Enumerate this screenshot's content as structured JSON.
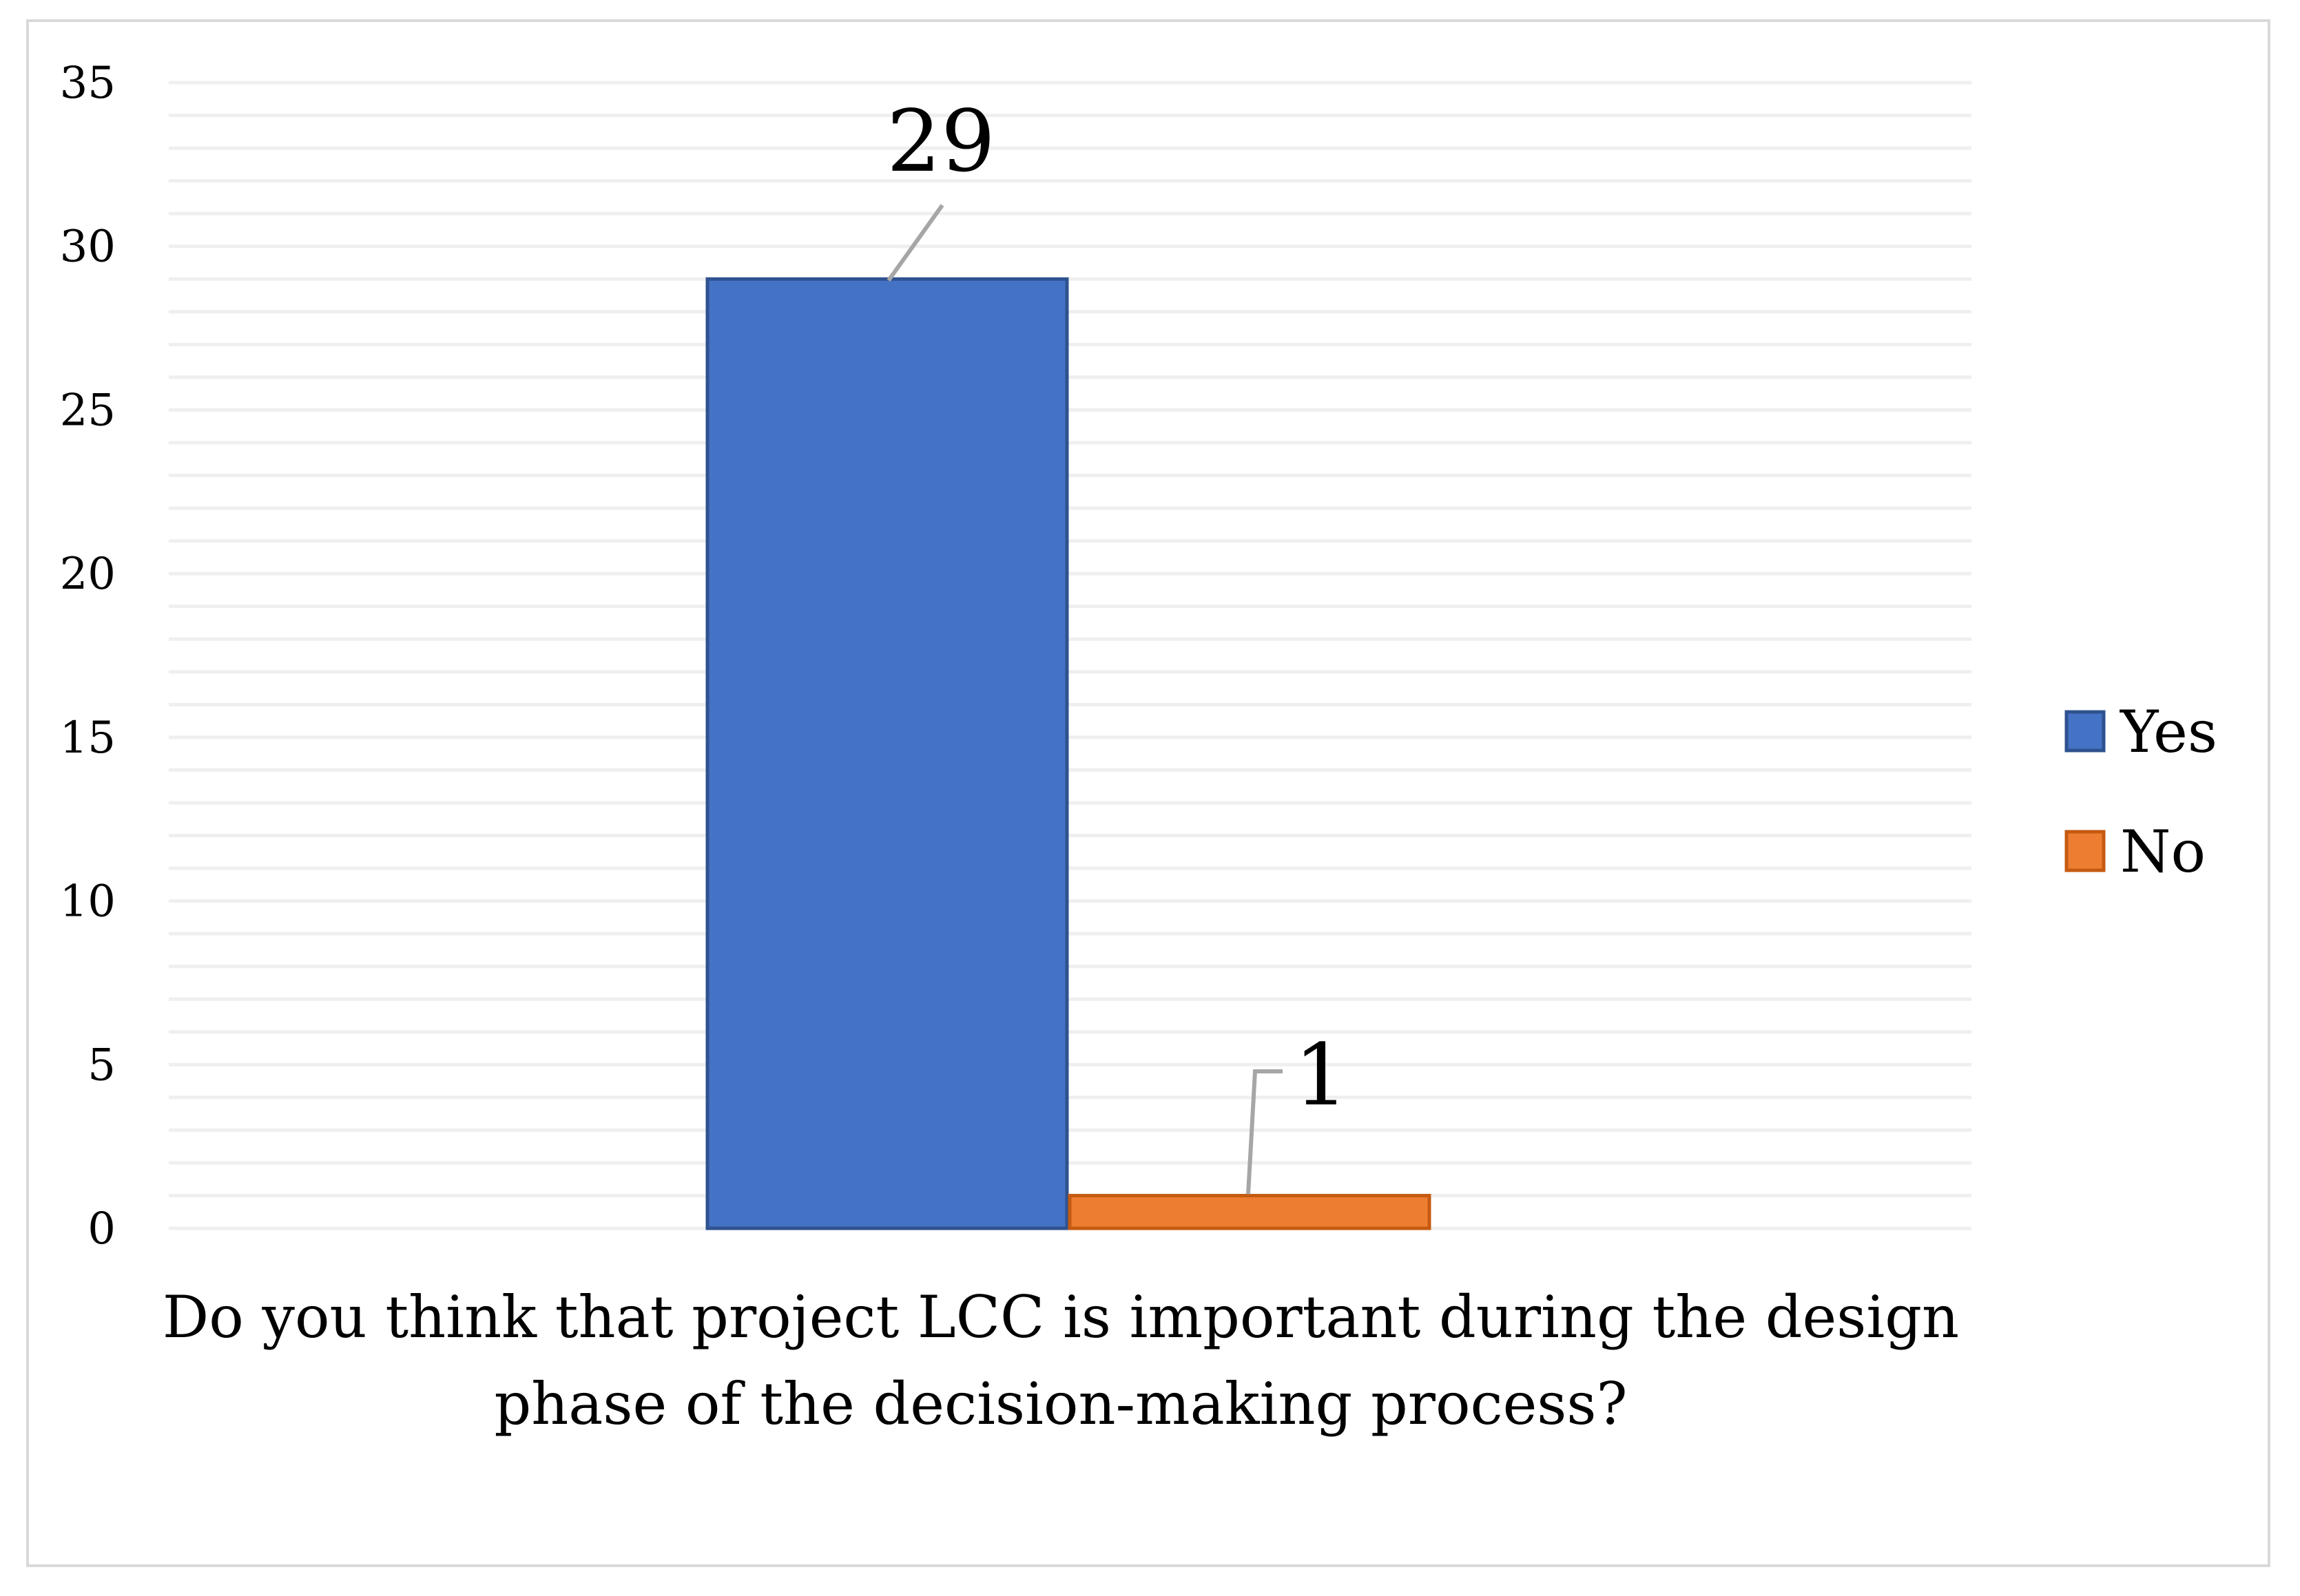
{
  "chart_data": {
    "type": "bar",
    "title": "",
    "xlabel_lines": [
      "Do you think that project LCC is important during the design",
      "phase of the decision-making process?"
    ],
    "ylabel": "",
    "ylim": [
      0,
      35
    ],
    "yticks": [
      0,
      5,
      10,
      15,
      20,
      25,
      30,
      35
    ],
    "minor_gridline_step": 1,
    "grid": true,
    "legend_position": "right",
    "series": [
      {
        "name": "Yes",
        "value": 29,
        "value_label": "29",
        "color": "#4472C4",
        "edge_color": "#2F528F"
      },
      {
        "name": "No",
        "value": 1,
        "value_label": "1",
        "color": "#ED7D31",
        "edge_color": "#C55A11"
      }
    ],
    "gridline_color": "#efefef",
    "leader_line_color": "#a6a6a6"
  }
}
